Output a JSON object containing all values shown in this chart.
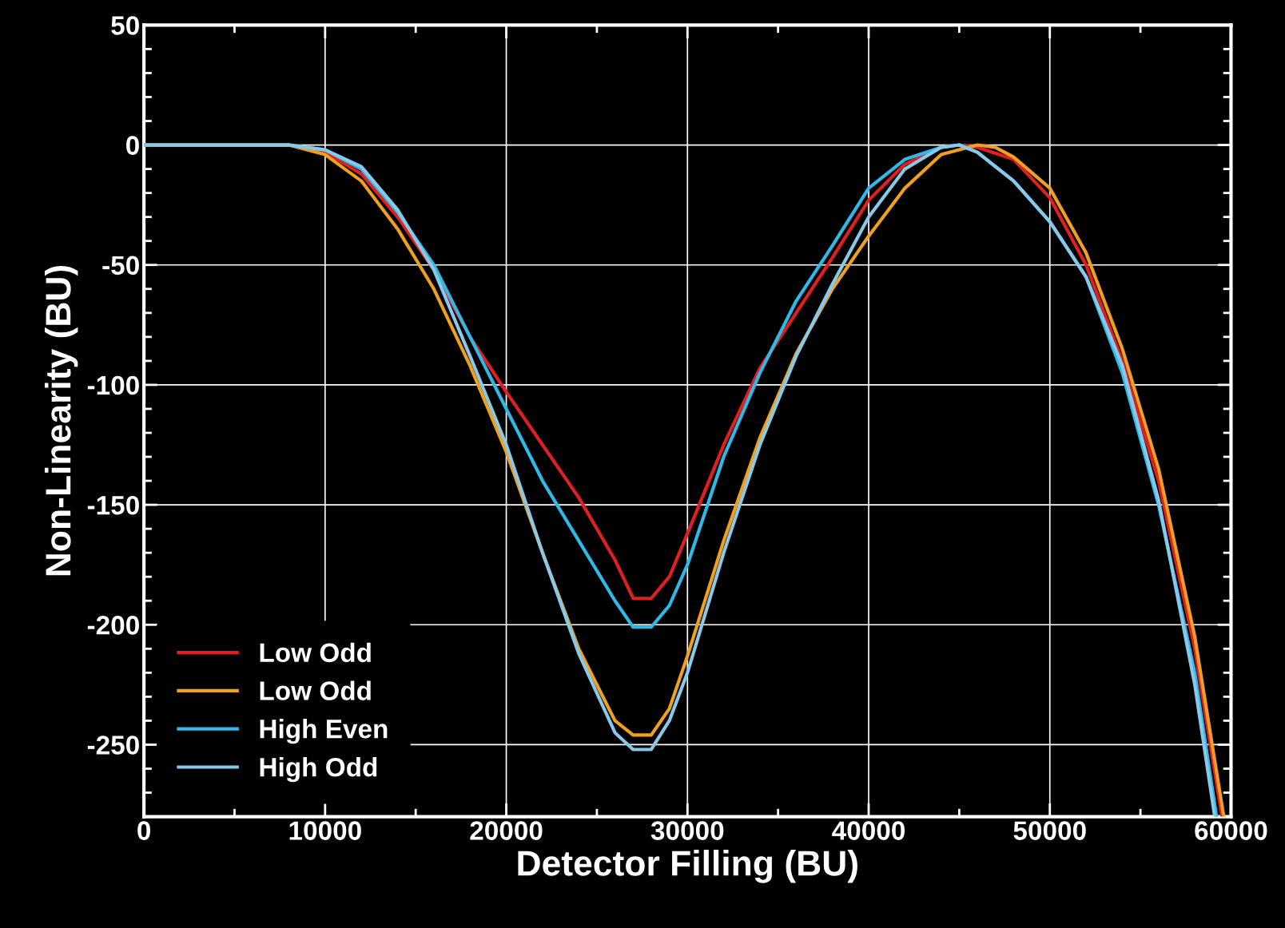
{
  "chart_data": {
    "type": "line",
    "xlabel": "Detector Filling (BU)",
    "ylabel": "Non-Linearity (BU)",
    "xlim": [
      0,
      60000
    ],
    "xticks": [
      0,
      10000,
      20000,
      30000,
      40000,
      50000,
      60000
    ],
    "ylim": [
      -280,
      50
    ],
    "yticks": [
      50,
      0,
      -50,
      -100,
      -150,
      -200,
      -250
    ],
    "grid": true,
    "legend": "bottom left",
    "line_style": "solid",
    "marker": "none",
    "series": [
      {
        "name": "Low Odd",
        "color": "#e02020",
        "x": [
          0,
          8000,
          10000,
          12000,
          14000,
          16000,
          18000,
          20000,
          22000,
          24000,
          26000,
          27000,
          28000,
          29000,
          30000,
          32000,
          34000,
          36000,
          38000,
          40000,
          42000,
          44000,
          45000,
          46000,
          48000,
          50000,
          52000,
          54000,
          56000,
          58000,
          59500
        ],
        "values": [
          0,
          0,
          -3,
          -12,
          -30,
          -52,
          -80,
          -103,
          -125,
          -147,
          -173,
          -189,
          -189,
          -180,
          -162,
          -125,
          -93,
          -70,
          -47,
          -23,
          -8,
          -1,
          0,
          -1,
          -6,
          -22,
          -50,
          -90,
          -140,
          -210,
          -280
        ]
      },
      {
        "name": "Low Odd",
        "color": "#f0a020",
        "x": [
          0,
          8000,
          10000,
          12000,
          14000,
          16000,
          18000,
          20000,
          22000,
          24000,
          26000,
          27000,
          28000,
          29000,
          30000,
          32000,
          34000,
          36000,
          38000,
          40000,
          42000,
          44000,
          46000,
          47000,
          48000,
          50000,
          52000,
          54000,
          56000,
          58000,
          59600
        ],
        "values": [
          0,
          0,
          -4,
          -15,
          -35,
          -60,
          -92,
          -128,
          -170,
          -210,
          -240,
          -246,
          -246,
          -235,
          -213,
          -165,
          -122,
          -87,
          -60,
          -38,
          -18,
          -4,
          0,
          -1,
          -5,
          -18,
          -45,
          -85,
          -135,
          -205,
          -280
        ]
      },
      {
        "name": "High Even",
        "color": "#30b8e8",
        "x": [
          0,
          8000,
          10000,
          12000,
          14000,
          16000,
          18000,
          20000,
          22000,
          24000,
          26000,
          27000,
          28000,
          29000,
          30000,
          32000,
          34000,
          36000,
          38000,
          40000,
          42000,
          44000,
          45000,
          46000,
          48000,
          50000,
          52000,
          54000,
          56000,
          58000,
          59200
        ],
        "values": [
          0,
          0,
          -2,
          -10,
          -28,
          -50,
          -80,
          -110,
          -140,
          -165,
          -190,
          -201,
          -201,
          -192,
          -175,
          -130,
          -95,
          -65,
          -42,
          -18,
          -6,
          -1,
          0,
          -3,
          -15,
          -32,
          -55,
          -95,
          -150,
          -220,
          -280
        ]
      },
      {
        "name": "High Odd",
        "color": "#88c8e8",
        "x": [
          0,
          8000,
          10000,
          12000,
          14000,
          16000,
          18000,
          20000,
          22000,
          24000,
          26000,
          27000,
          28000,
          29000,
          30000,
          32000,
          34000,
          36000,
          38000,
          40000,
          42000,
          44000,
          45000,
          46000,
          48000,
          50000,
          52000,
          54000,
          56000,
          58000,
          59100
        ],
        "values": [
          0,
          0,
          -2,
          -9,
          -27,
          -52,
          -88,
          -125,
          -170,
          -212,
          -245,
          -252,
          -252,
          -240,
          -220,
          -170,
          -125,
          -88,
          -58,
          -30,
          -10,
          -1,
          0,
          -3,
          -15,
          -32,
          -55,
          -92,
          -148,
          -225,
          -280
        ]
      }
    ]
  }
}
